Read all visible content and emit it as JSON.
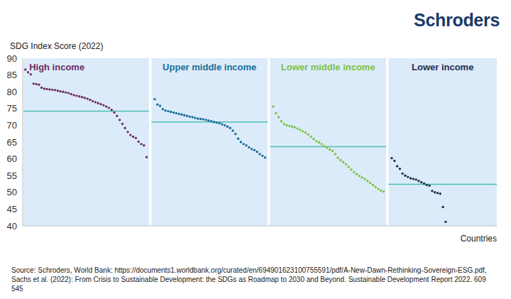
{
  "chart_data": {
    "type": "scatter",
    "brand": "Schroders",
    "y_label": "SDG Index Score (2022)",
    "x_label": "Countries",
    "source": "Source: Schroders, World Bank: https://documents1.worldbank.org/curated/en/694901623100755591/pdf/A-New-Dawn-Rethinking-Sovereign-ESG.pdf, Sachs et al. (2022): From Crisis to Sustainable Development: the SDGs as Roadmap to 2030 and Beyond. Sustainable Development Report 2022. 609545",
    "xlim": [
      0,
      176
    ],
    "ylim": [
      40,
      90
    ],
    "yticks": [
      40,
      45,
      50,
      55,
      60,
      65,
      70,
      75,
      80,
      85,
      90
    ],
    "grid": false,
    "tick_labels": "y",
    "marker": "circle",
    "average_color": "#4dbfb0",
    "series": [
      {
        "name": "High income",
        "color": "#6e2f66",
        "average": 74.2,
        "x": [
          1,
          2,
          3,
          4,
          5,
          6,
          7,
          8,
          9,
          10,
          11,
          12,
          13,
          14,
          15,
          16,
          17,
          18,
          19,
          20,
          21,
          22,
          23,
          24,
          25,
          26,
          27,
          28,
          29,
          30,
          31,
          32,
          33,
          34,
          35,
          36,
          37,
          38,
          39,
          40,
          41,
          42,
          43,
          44,
          45,
          46
        ],
        "values": [
          86.6,
          85.8,
          85.2,
          82.4,
          82.3,
          82.1,
          81.2,
          80.9,
          80.8,
          80.7,
          80.6,
          80.5,
          80.3,
          80.1,
          80.0,
          79.8,
          79.6,
          79.3,
          79.0,
          78.8,
          78.6,
          78.4,
          78.2,
          77.9,
          77.6,
          77.2,
          76.9,
          76.6,
          76.3,
          76.0,
          75.6,
          75.2,
          74.6,
          73.8,
          72.8,
          71.6,
          70.4,
          69.2,
          68.0,
          67.1,
          66.6,
          66.2,
          65.1,
          64.4,
          64.0,
          60.5
        ]
      },
      {
        "name": "Upper middle income",
        "color": "#1a6e99",
        "average": 71.0,
        "x": [
          49,
          50,
          51,
          52,
          53,
          54,
          55,
          56,
          57,
          58,
          59,
          60,
          61,
          62,
          63,
          64,
          65,
          66,
          67,
          68,
          69,
          70,
          71,
          72,
          73,
          74,
          75,
          76,
          77,
          78,
          79,
          80,
          81,
          82,
          83,
          84,
          85,
          86,
          87,
          88,
          89,
          90
        ],
        "values": [
          77.8,
          76.2,
          75.8,
          74.8,
          74.4,
          74.2,
          74.0,
          73.8,
          73.6,
          73.4,
          73.2,
          73.0,
          72.8,
          72.6,
          72.4,
          72.2,
          72.0,
          71.9,
          71.8,
          71.6,
          71.4,
          71.2,
          71.0,
          70.8,
          70.6,
          70.3,
          70.0,
          69.6,
          69.2,
          68.4,
          67.4,
          66.0,
          65.0,
          64.4,
          64.0,
          63.4,
          62.9,
          62.6,
          62.1,
          61.4,
          60.9,
          60.4
        ]
      },
      {
        "name": "Lower middle income",
        "color": "#7dc242",
        "average": 63.6,
        "x": [
          93,
          94,
          95,
          96,
          97,
          98,
          99,
          100,
          101,
          102,
          103,
          104,
          105,
          106,
          107,
          108,
          109,
          110,
          111,
          112,
          113,
          114,
          115,
          116,
          117,
          118,
          119,
          120,
          121,
          122,
          123,
          124,
          125,
          126,
          127,
          128,
          129,
          130,
          131,
          132,
          133,
          134
        ],
        "values": [
          75.6,
          73.6,
          72.4,
          71.2,
          70.4,
          70.0,
          69.8,
          69.6,
          69.4,
          69.0,
          68.6,
          68.2,
          67.8,
          67.3,
          66.6,
          65.9,
          65.3,
          64.9,
          64.4,
          63.8,
          63.3,
          62.8,
          62.4,
          61.4,
          60.3,
          59.6,
          59.0,
          58.4,
          57.6,
          56.8,
          56.0,
          55.4,
          54.9,
          54.4,
          54.0,
          53.4,
          52.8,
          52.2,
          51.6,
          51.0,
          50.5,
          50.2
        ]
      },
      {
        "name": "Lower income",
        "color": "#1f2d4f",
        "average": 52.4,
        "x": [
          137,
          138,
          139,
          140,
          141,
          142,
          143,
          144,
          145,
          146,
          147,
          148,
          149,
          150,
          151,
          152,
          153,
          154,
          155,
          156,
          157
        ],
        "values": [
          60.2,
          59.4,
          57.8,
          57.0,
          55.6,
          55.0,
          54.6,
          54.2,
          54.0,
          53.8,
          53.4,
          53.0,
          52.6,
          52.2,
          52.0,
          50.4,
          50.0,
          49.8,
          49.6,
          45.6,
          41.2
        ]
      }
    ]
  }
}
